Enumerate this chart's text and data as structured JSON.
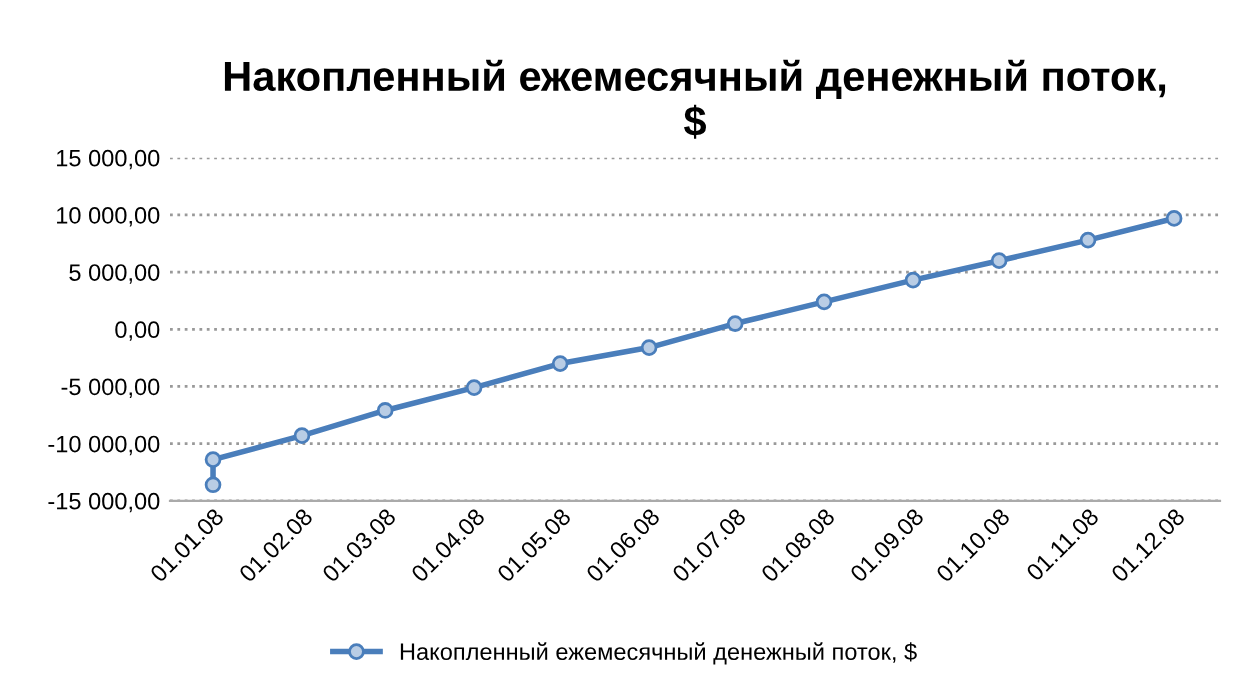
{
  "chart_data": {
    "type": "line",
    "title": "Накопленный ежемесячный денежный поток,\n$",
    "x": [
      "2008-01-01",
      "2008-01-01",
      "2008-02-01",
      "2008-03-01",
      "2008-04-01",
      "2008-05-01",
      "2008-06-01",
      "2008-07-01",
      "2008-08-01",
      "2008-09-01",
      "2008-10-01",
      "2008-11-01",
      "2008-12-01"
    ],
    "series": [
      {
        "name": "Накопленный ежемесячный денежный поток, $",
        "color": "#4a7ebb",
        "values": [
          -13600,
          -11400,
          -9300,
          -7100,
          -5100,
          -3000,
          -1600,
          500,
          2400,
          4300,
          6000,
          7800,
          9700
        ]
      }
    ],
    "xlim": [
      "2007-12-17",
      "2008-12-17"
    ],
    "xticks": [
      {
        "value": "2008-01-01",
        "label": "01.01.08"
      },
      {
        "value": "2008-02-01",
        "label": "01.02.08"
      },
      {
        "value": "2008-03-01",
        "label": "01.03.08"
      },
      {
        "value": "2008-04-01",
        "label": "01.04.08"
      },
      {
        "value": "2008-05-01",
        "label": "01.05.08"
      },
      {
        "value": "2008-06-01",
        "label": "01.06.08"
      },
      {
        "value": "2008-07-01",
        "label": "01.07.08"
      },
      {
        "value": "2008-08-01",
        "label": "01.08.08"
      },
      {
        "value": "2008-09-01",
        "label": "01.09.08"
      },
      {
        "value": "2008-10-01",
        "label": "01.10.08"
      },
      {
        "value": "2008-11-01",
        "label": "01.11.08"
      },
      {
        "value": "2008-12-01",
        "label": "01.12.08"
      }
    ],
    "ylim": [
      -15000,
      15000
    ],
    "yticks": [
      {
        "value": -15000,
        "label": "-15 000,00"
      },
      {
        "value": -10000,
        "label": "-10 000,00"
      },
      {
        "value": -5000,
        "label": "-5 000,00"
      },
      {
        "value": 0,
        "label": "0,00"
      },
      {
        "value": 5000,
        "label": "5 000,00"
      },
      {
        "value": 10000,
        "label": "10 000,00"
      },
      {
        "value": 15000,
        "label": "15 000,00"
      }
    ],
    "grid": "y",
    "legend": "bottom",
    "marker": "circle",
    "line_style": "solid"
  }
}
